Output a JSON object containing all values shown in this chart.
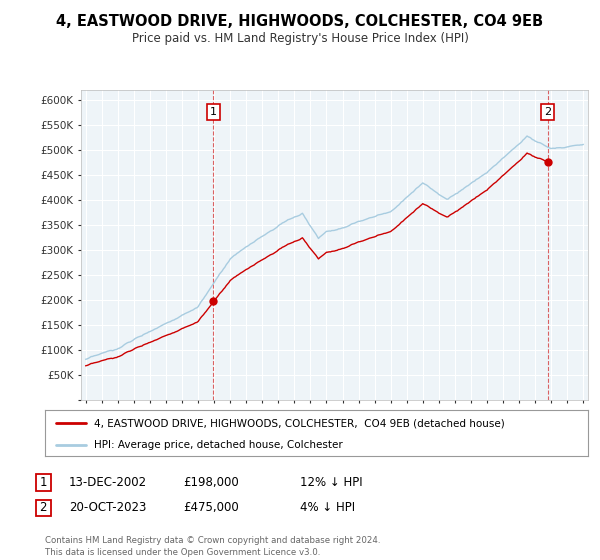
{
  "title": "4, EASTWOOD DRIVE, HIGHWOODS, COLCHESTER, CO4 9EB",
  "subtitle": "Price paid vs. HM Land Registry's House Price Index (HPI)",
  "legend_line1": "4, EASTWOOD DRIVE, HIGHWOODS, COLCHESTER,  CO4 9EB (detached house)",
  "legend_line2": "HPI: Average price, detached house, Colchester",
  "annotation1_date": "13-DEC-2002",
  "annotation1_price": "£198,000",
  "annotation1_hpi": "12% ↓ HPI",
  "annotation2_date": "20-OCT-2023",
  "annotation2_price": "£475,000",
  "annotation2_hpi": "4% ↓ HPI",
  "footer": "Contains HM Land Registry data © Crown copyright and database right 2024.\nThis data is licensed under the Open Government Licence v3.0.",
  "hpi_color": "#a8cce0",
  "price_color": "#cc0000",
  "annotation_color": "#cc0000",
  "plot_bg_color": "#eef4f8",
  "ylim": [
    0,
    620000
  ],
  "yticks": [
    0,
    50000,
    100000,
    150000,
    200000,
    250000,
    300000,
    350000,
    400000,
    450000,
    500000,
    550000,
    600000
  ],
  "background_color": "#ffffff",
  "grid_color": "#ffffff"
}
